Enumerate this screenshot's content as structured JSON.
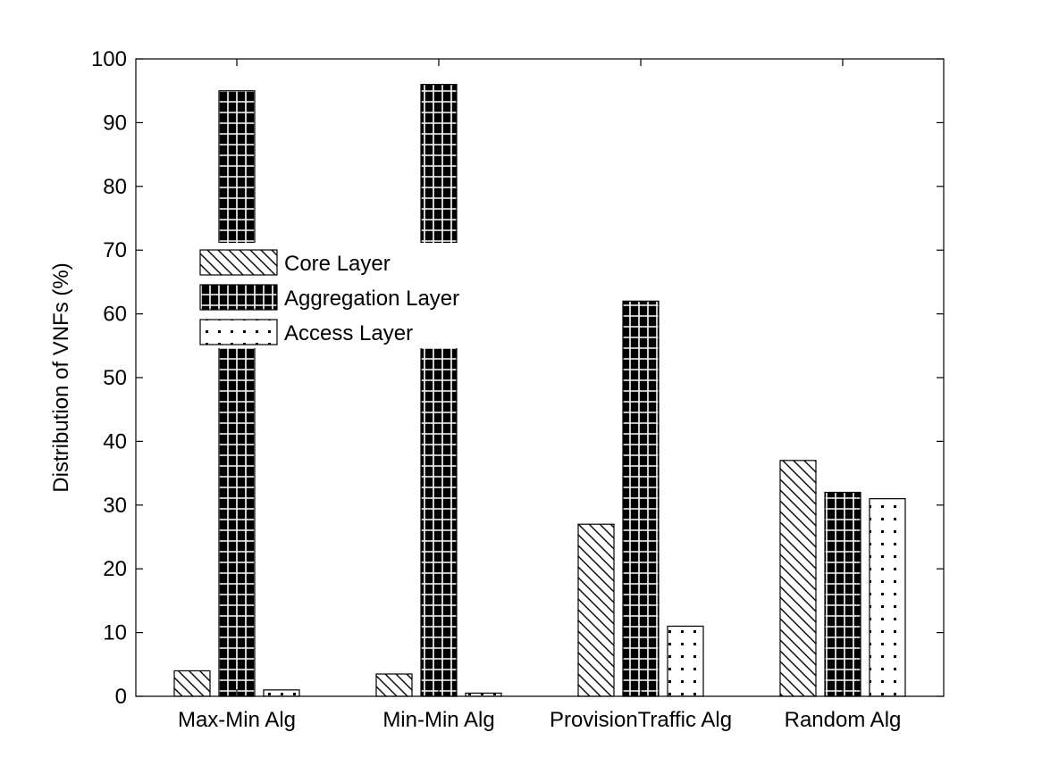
{
  "chart_data": {
    "type": "bar",
    "title": "",
    "xlabel": "",
    "ylabel": "Distribution of VNFs (%)",
    "ylim": [
      0,
      100
    ],
    "yticks": [
      0,
      10,
      20,
      30,
      40,
      50,
      60,
      70,
      80,
      90,
      100
    ],
    "categories": [
      "Max-Min Alg",
      "Min-Min Alg",
      "ProvisionTraffic Alg",
      "Random Alg"
    ],
    "series": [
      {
        "name": "Core Layer",
        "values": [
          4,
          3.5,
          27,
          37
        ],
        "pattern": "diagonal-hatch"
      },
      {
        "name": "Aggregation Layer",
        "values": [
          95,
          96,
          62,
          32
        ],
        "pattern": "grid-black"
      },
      {
        "name": "Access Layer",
        "values": [
          1,
          0.5,
          11,
          31
        ],
        "pattern": "dots"
      }
    ],
    "legend": {
      "placement": "upper-left-inside"
    },
    "grid": false
  }
}
